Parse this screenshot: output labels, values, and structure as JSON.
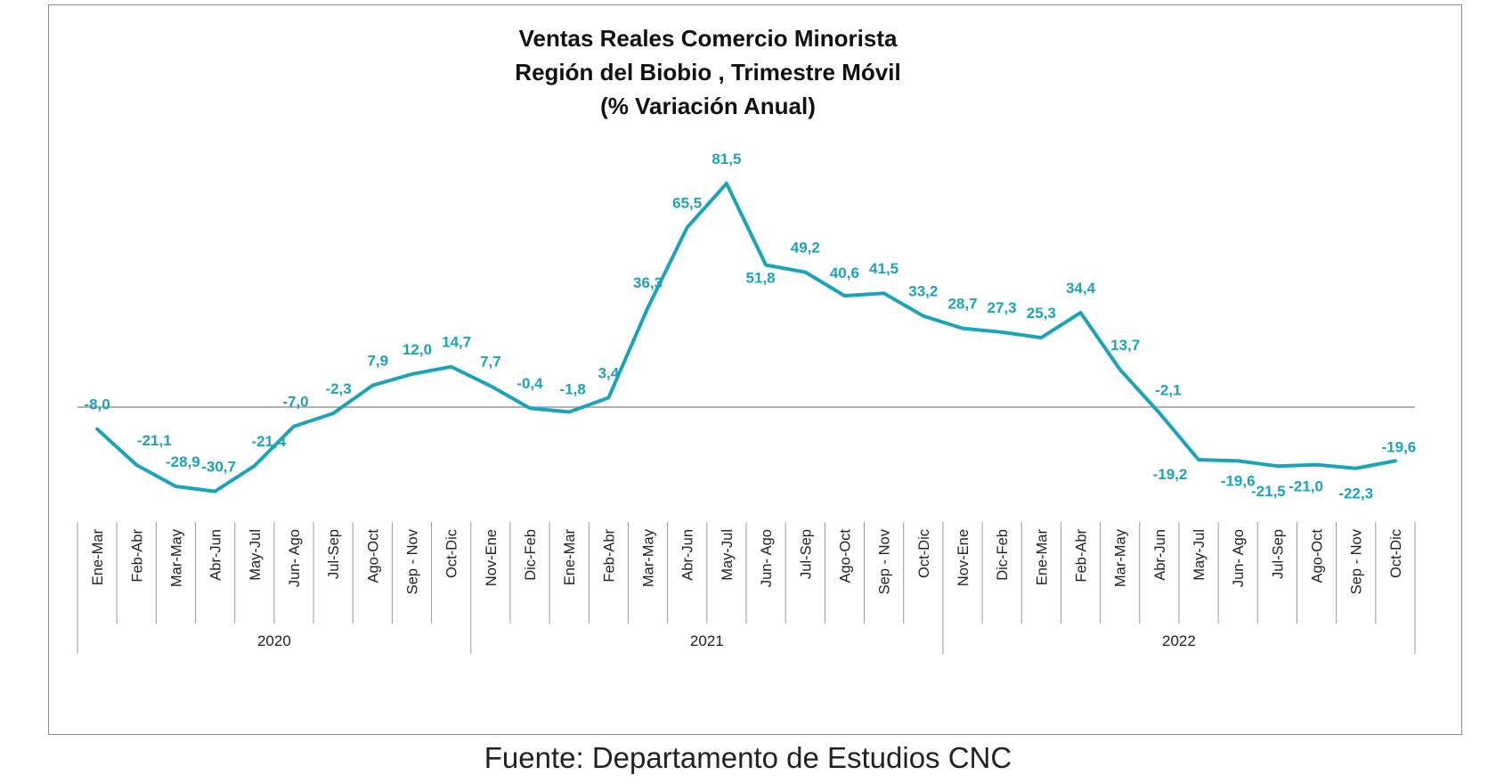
{
  "colors": {
    "series": "#1BA3BC",
    "axis": "#9a9a9a",
    "text": "#222222"
  },
  "source_note": "Fuente: Departamento de Estudios CNC",
  "chart_data": {
    "type": "line",
    "title": [
      "Ventas Reales Comercio Minorista",
      "Región del Biobio , Trimestre Móvil",
      "(% Variación Anual)"
    ],
    "categories": [
      "Ene-Mar",
      "Feb-Abr",
      "Mar-May",
      "Abr-Jun",
      "May-Jul",
      "Jun- Ago",
      "Jul-Sep",
      "Ago-Oct",
      "Sep - Nov",
      "Oct-Dic",
      "Nov-Ene",
      "Dic-Feb",
      "Ene-Mar",
      "Feb-Abr",
      "Mar-May",
      "Abr-Jun",
      "May-Jul",
      "Jun- Ago",
      "Jul-Sep",
      "Ago-Oct",
      "Sep - Nov",
      "Oct-Dic",
      "Nov-Ene",
      "Dic-Feb",
      "Ene-Mar",
      "Feb-Abr",
      "Mar-May",
      "Abr-Jun",
      "May-Jul",
      "Jun- Ago",
      "Jul-Sep",
      "Ago-Oct",
      "Sep - Nov",
      "Oct-Dic"
    ],
    "values": [
      -8.0,
      -21.1,
      -28.9,
      -30.7,
      -21.4,
      -7.0,
      -2.3,
      7.9,
      12.0,
      14.7,
      7.7,
      -0.4,
      -1.8,
      3.4,
      36.3,
      65.5,
      81.5,
      51.8,
      49.2,
      40.6,
      41.5,
      33.2,
      28.7,
      27.3,
      25.3,
      34.4,
      13.7,
      -2.1,
      -19.2,
      -19.6,
      -21.5,
      -21.0,
      -22.3,
      -19.6
    ],
    "data_labels": [
      "-8,0",
      "-21,1",
      "-28,9",
      "-30,7",
      "-21,4",
      "-7,0",
      "-2,3",
      "7,9",
      "12,0",
      "14,7",
      "7,7",
      "-0,4",
      "-1,8",
      "3,4",
      "36,3",
      "65,5",
      "81,5",
      "51,8",
      "49,2",
      "40,6",
      "41,5",
      "33,2",
      "28,7",
      "27,3",
      "25,3",
      "34,4",
      "13,7",
      "-2,1",
      "-19,2",
      "-19,6",
      "-21,5",
      "-21,0",
      "-22,3",
      "-19,6"
    ],
    "groups": [
      {
        "label": "2020",
        "start": 0,
        "end": 9
      },
      {
        "label": "2021",
        "start": 10,
        "end": 21
      },
      {
        "label": "2022",
        "start": 22,
        "end": 33
      }
    ],
    "xlabel": "",
    "ylabel": "",
    "ylim": [
      -60,
      95
    ],
    "grid": false,
    "legend": false
  }
}
